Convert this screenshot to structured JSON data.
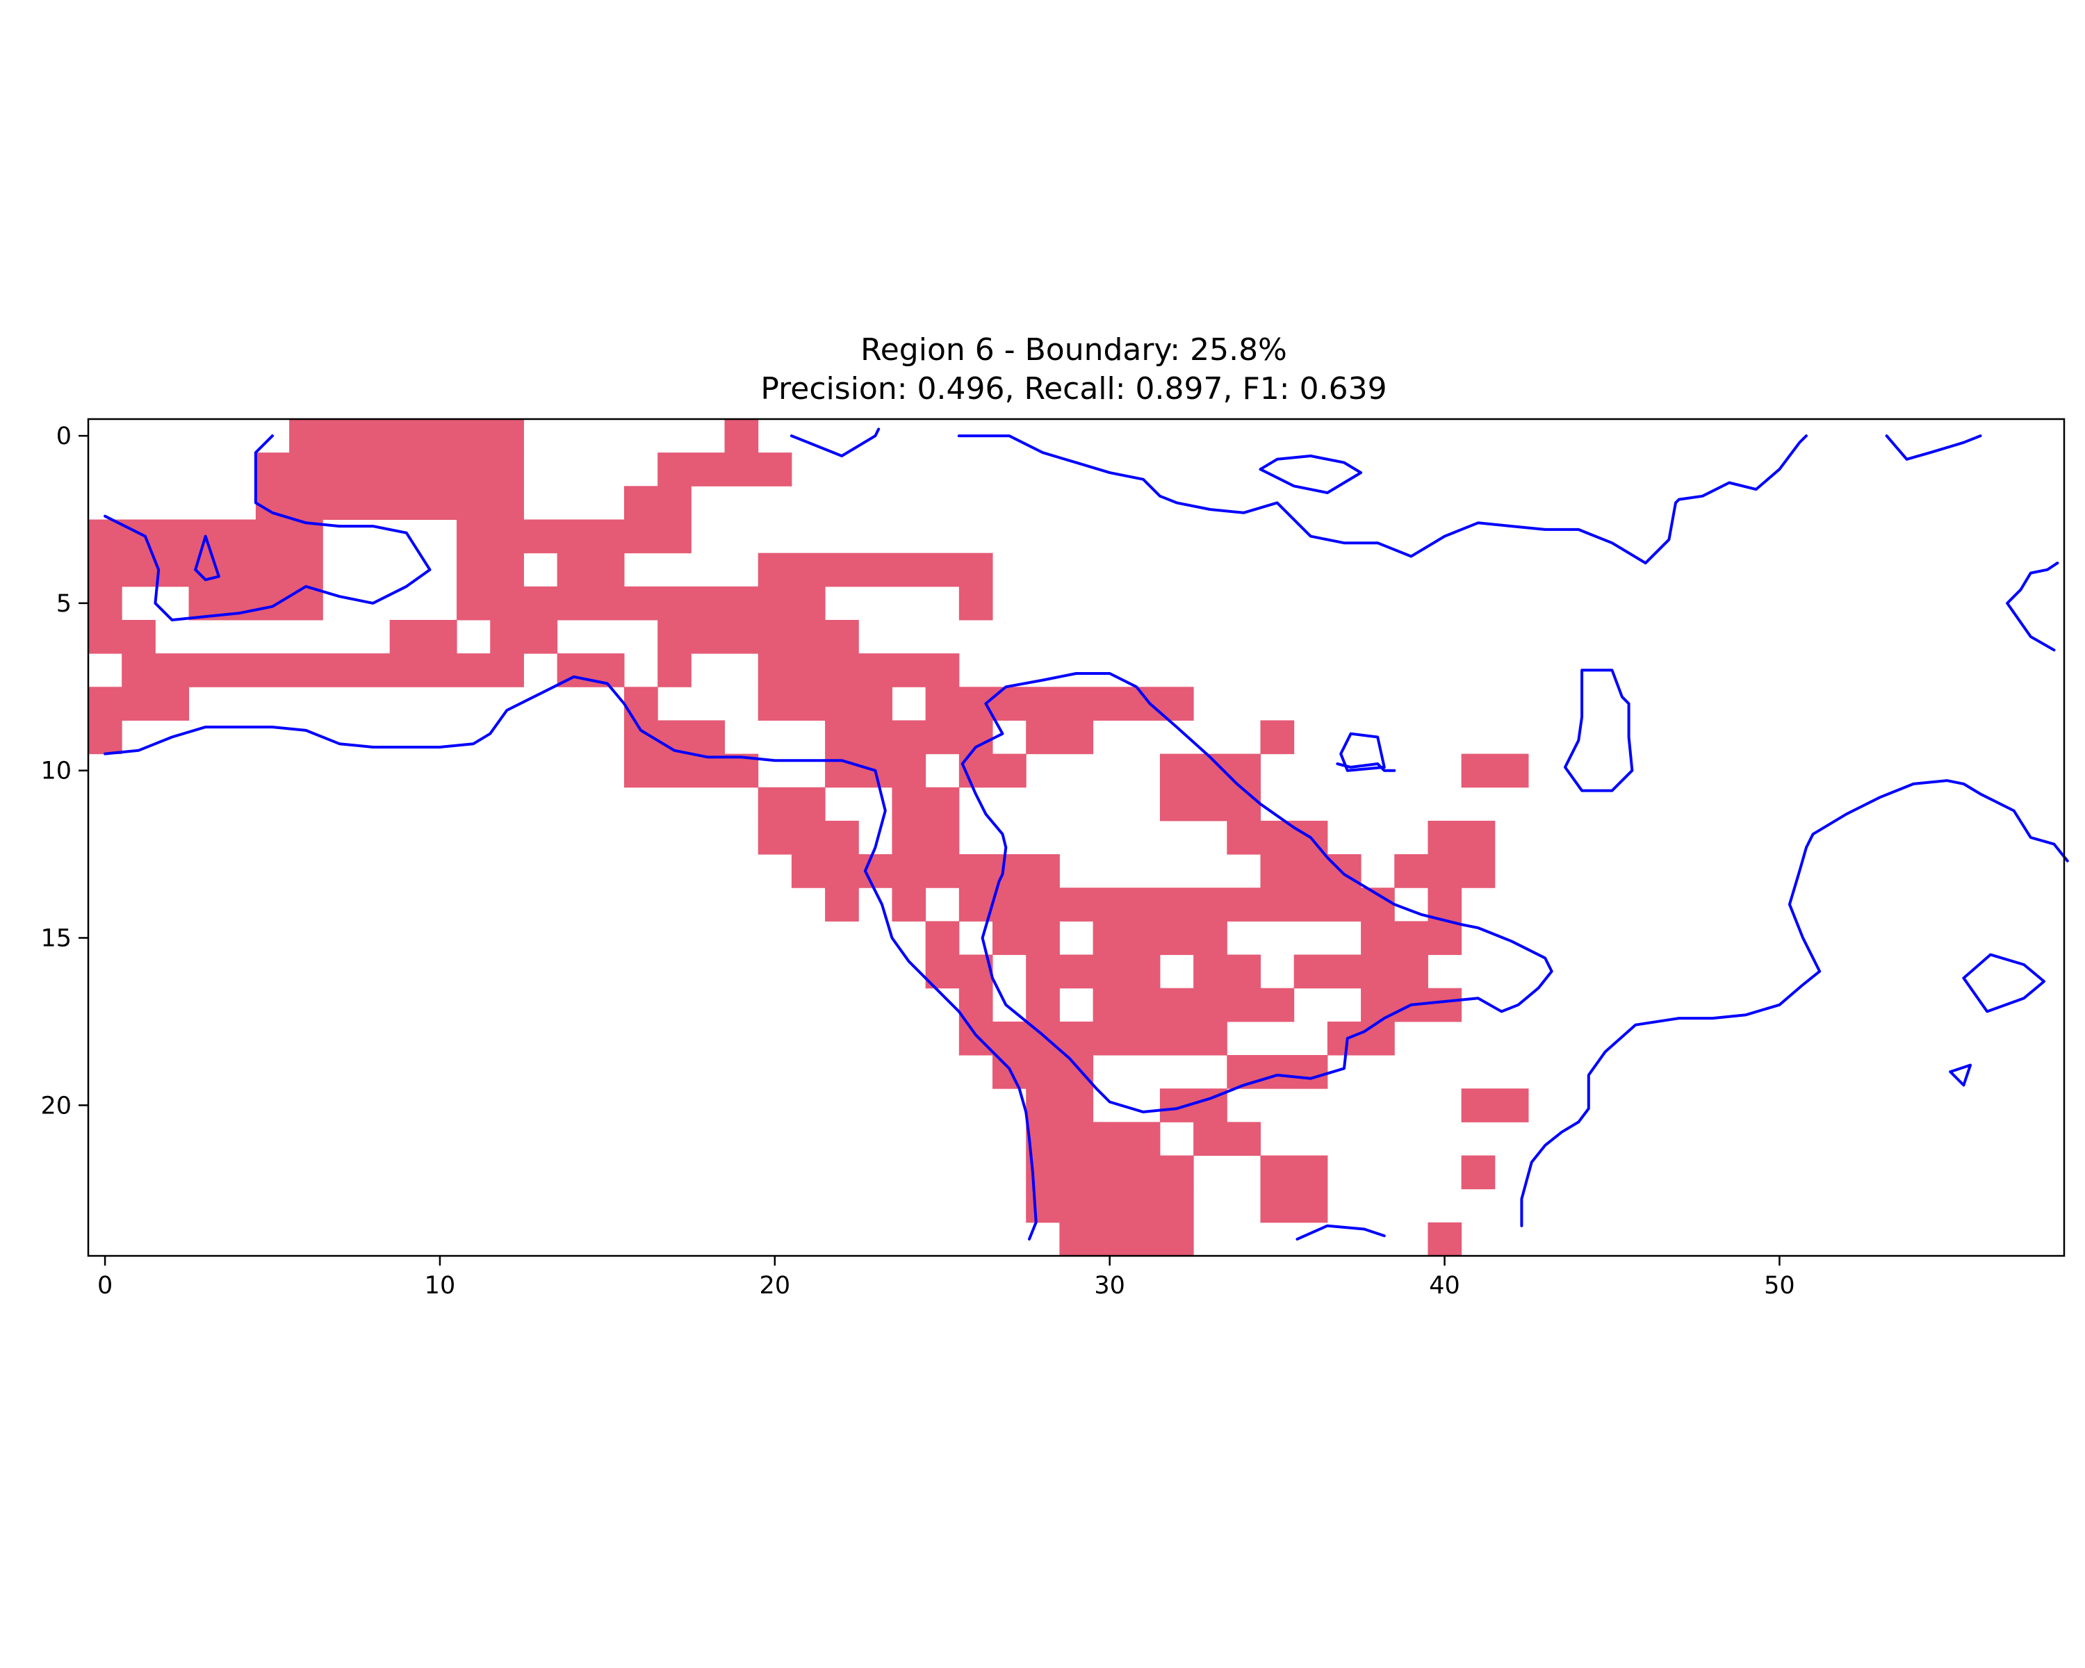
{
  "chart_data": {
    "type": "heatmap",
    "title": "Region 6 - Boundary: 25.8%",
    "subtitle": "Precision: 0.496, Recall: 0.897, F1: 0.639",
    "xlabel": "",
    "ylabel": "",
    "xlim": [
      -0.5,
      58.5
    ],
    "ylim": [
      24.5,
      -0.5
    ],
    "x_ticks": [
      0,
      10,
      20,
      30,
      40,
      50
    ],
    "y_ticks": [
      0,
      5,
      10,
      15,
      20
    ],
    "grid": false,
    "legend": "none",
    "colors": {
      "boundary_cell": "#e55a75",
      "contour_line": "#0000ff",
      "background": "#ffffff"
    },
    "boundary_mask": {
      "rows": 25,
      "cols": 59,
      "runs": [
        [
          [
            6,
            12
          ],
          [
            19,
            19
          ]
        ],
        [
          [
            5,
            12
          ],
          [
            17,
            20
          ]
        ],
        [
          [
            5,
            12
          ],
          [
            16,
            17
          ]
        ],
        [
          [
            0,
            6
          ],
          [
            11,
            17
          ]
        ],
        [
          [
            0,
            6
          ],
          [
            11,
            12
          ],
          [
            14,
            15
          ],
          [
            20,
            26
          ]
        ],
        [
          [
            0,
            0
          ],
          [
            3,
            6
          ],
          [
            11,
            12
          ],
          [
            13,
            17
          ],
          [
            18,
            21
          ],
          [
            26,
            26
          ]
        ],
        [
          [
            0,
            1
          ],
          [
            9,
            10
          ],
          [
            12,
            13
          ],
          [
            17,
            19
          ],
          [
            20,
            22
          ]
        ],
        [
          [
            1,
            12
          ],
          [
            14,
            15
          ],
          [
            17,
            17
          ],
          [
            20,
            25
          ],
          [
            27,
            26
          ]
        ],
        [
          [
            0,
            2
          ],
          [
            16,
            16
          ],
          [
            20,
            23
          ],
          [
            25,
            32
          ]
        ],
        [
          [
            0,
            0
          ],
          [
            16,
            18
          ],
          [
            22,
            26
          ],
          [
            28,
            29
          ],
          [
            35,
            35
          ]
        ],
        [
          [
            16,
            19
          ],
          [
            22,
            24
          ],
          [
            26,
            27
          ],
          [
            32,
            34
          ],
          [
            41,
            42
          ]
        ],
        [
          [
            20,
            21
          ],
          [
            24,
            25
          ],
          [
            32,
            34
          ]
        ],
        [
          [
            20,
            22
          ],
          [
            24,
            25
          ],
          [
            34,
            36
          ],
          [
            40,
            41
          ]
        ],
        [
          [
            21,
            24
          ],
          [
            25,
            28
          ],
          [
            35,
            37
          ],
          [
            39,
            41
          ]
        ],
        [
          [
            22,
            22
          ],
          [
            24,
            24
          ],
          [
            26,
            38
          ],
          [
            40,
            40
          ]
        ],
        [
          [
            25,
            25
          ],
          [
            27,
            28
          ],
          [
            30,
            33
          ],
          [
            38,
            40
          ]
        ],
        [
          [
            25,
            26
          ],
          [
            28,
            31
          ],
          [
            33,
            34
          ],
          [
            36,
            39
          ]
        ],
        [
          [
            26,
            26
          ],
          [
            28,
            28
          ],
          [
            30,
            35
          ],
          [
            38,
            40
          ]
        ],
        [
          [
            26,
            28
          ],
          [
            29,
            33
          ],
          [
            37,
            38
          ]
        ],
        [
          [
            27,
            27
          ],
          [
            28,
            29
          ],
          [
            34,
            36
          ]
        ],
        [
          [
            28,
            29
          ],
          [
            32,
            33
          ],
          [
            41,
            42
          ]
        ],
        [
          [
            28,
            29
          ],
          [
            30,
            31
          ],
          [
            33,
            34
          ]
        ],
        [
          [
            28,
            30
          ],
          [
            31,
            32
          ],
          [
            35,
            36
          ],
          [
            41,
            41
          ]
        ],
        [
          [
            28,
            30
          ],
          [
            31,
            32
          ],
          [
            35,
            36
          ]
        ],
        [
          [
            29,
            32
          ],
          [
            40,
            40
          ]
        ]
      ]
    }
  }
}
